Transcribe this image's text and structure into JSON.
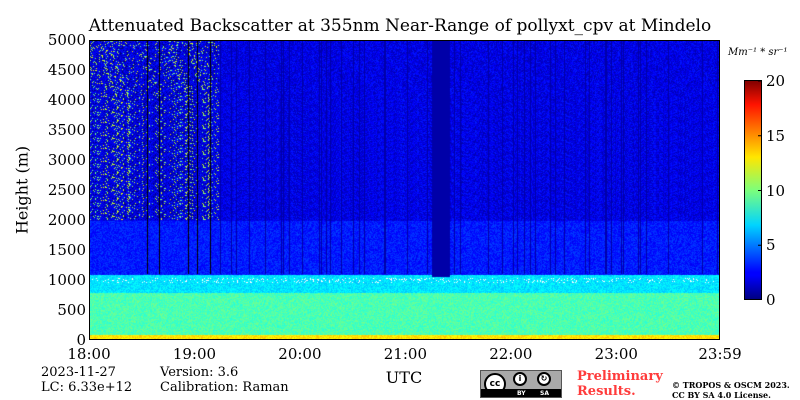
{
  "chart_data": {
    "type": "heatmap",
    "title": "Attenuated Backscatter at 355nm Near-Range of pollyxt_cpv at Mindelo",
    "xlabel": "UTC",
    "ylabel": "Height (m)",
    "x_ticks": [
      "18:00",
      "19:00",
      "20:00",
      "21:00",
      "22:00",
      "23:00",
      "23:59"
    ],
    "y_ticks": [
      "0",
      "500",
      "1000",
      "1500",
      "2000",
      "2500",
      "3000",
      "3500",
      "4000",
      "4500",
      "5000"
    ],
    "xlim": [
      "18:00",
      "23:59"
    ],
    "ylim": [
      0,
      5000
    ],
    "colorbar": {
      "unit": "Mm⁻¹ * sr⁻¹",
      "ticks": [
        "0",
        "5",
        "10",
        "15",
        "20"
      ],
      "range": [
        0,
        20
      ],
      "colormap": "jet"
    },
    "layers": [
      {
        "from_m": 0,
        "to_m": 100,
        "value": 13
      },
      {
        "from_m": 100,
        "to_m": 800,
        "value": 9
      },
      {
        "from_m": 800,
        "to_m": 1100,
        "value": 7
      },
      {
        "from_m": 1100,
        "to_m": 2000,
        "value": 3
      },
      {
        "from_m": 2000,
        "to_m": 5000,
        "value": 2
      }
    ],
    "cloud_base_m": 1000,
    "dark_gap_intervals": [
      [
        "21:15",
        "21:25"
      ]
    ]
  },
  "info": {
    "date": "2023-11-27",
    "lc": "LC: 6.33e+12",
    "version": "Version: 3.6",
    "calibration": "Calibration: Raman",
    "preliminary_line1": "Preliminary",
    "preliminary_line2": "Results.",
    "copyright_line1": "© TROPOS & OSCM 2023.",
    "copyright_line2": "CC BY SA 4.0 License.",
    "license_by": "BY",
    "license_sa": "SA"
  }
}
